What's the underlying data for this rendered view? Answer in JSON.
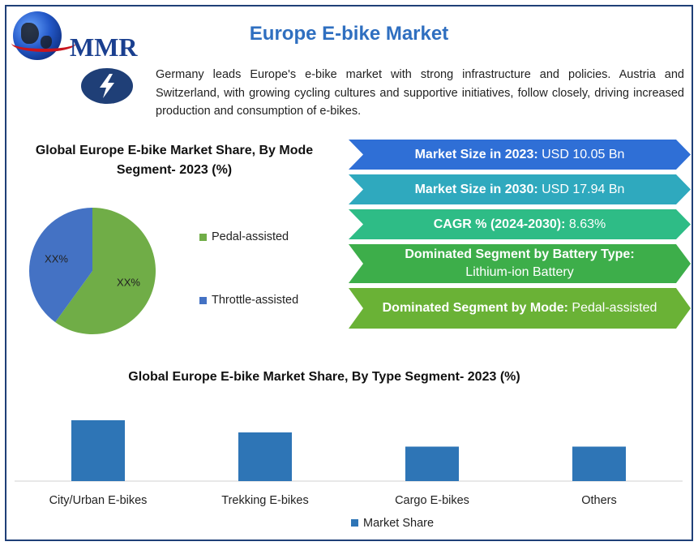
{
  "header": {
    "logo_text": "MMR",
    "title": "Europe E-bike Market"
  },
  "intro": {
    "icon": "lightning-bolt-icon",
    "text": "Germany leads Europe's e-bike market with strong infrastructure and policies. Austria and Switzerland, with growing cycling cultures and supportive initiatives, follow closely, driving increased production and consumption of e-bikes."
  },
  "colors": {
    "frame": "#1f3f77",
    "title": "#2f6fc0",
    "pedal": "#70ad47",
    "throttle": "#4472c4",
    "bar": "#2e75b6"
  },
  "stats": [
    {
      "label": "Market Size in 2023:",
      "value": " USD 10.05 Bn",
      "color": "#2f6fd6"
    },
    {
      "label": "Market Size in 2030:",
      "value": " USD 17.94 Bn",
      "color": "#2fa9be"
    },
    {
      "label": "CAGR % (2024-2030):",
      "value": " 8.63%",
      "color": "#2ebc86"
    },
    {
      "label": "Dominated Segment by Battery Type:",
      "value": " Lithium-ion Battery",
      "color": "#3dae4a"
    },
    {
      "label": "Dominated Segment by Mode:",
      "value": " Pedal-assisted",
      "color": "#6ab236"
    }
  ],
  "chart_data": [
    {
      "type": "pie",
      "title": "Global Europe E-bike Market Share, By Mode Segment- 2023 (%)",
      "slices": [
        {
          "name": "Pedal-assisted",
          "value": 60,
          "label": "XX%",
          "color": "#70ad47"
        },
        {
          "name": "Throttle-assisted",
          "value": 40,
          "label": "XX%",
          "color": "#4472c4"
        }
      ],
      "legend": "right"
    },
    {
      "type": "bar",
      "title": "Global Europe E-bike Market Share, By Type Segment- 2023 (%)",
      "categories": [
        "City/Urban E-bikes",
        "Trekking E-bikes",
        "Cargo E-bikes",
        "Others"
      ],
      "series": [
        {
          "name": "Market Share",
          "values": [
            30,
            24,
            17,
            17
          ],
          "color": "#2e75b6"
        }
      ],
      "ylim": [
        0,
        40
      ],
      "grid": false,
      "legend": "bottom"
    }
  ]
}
